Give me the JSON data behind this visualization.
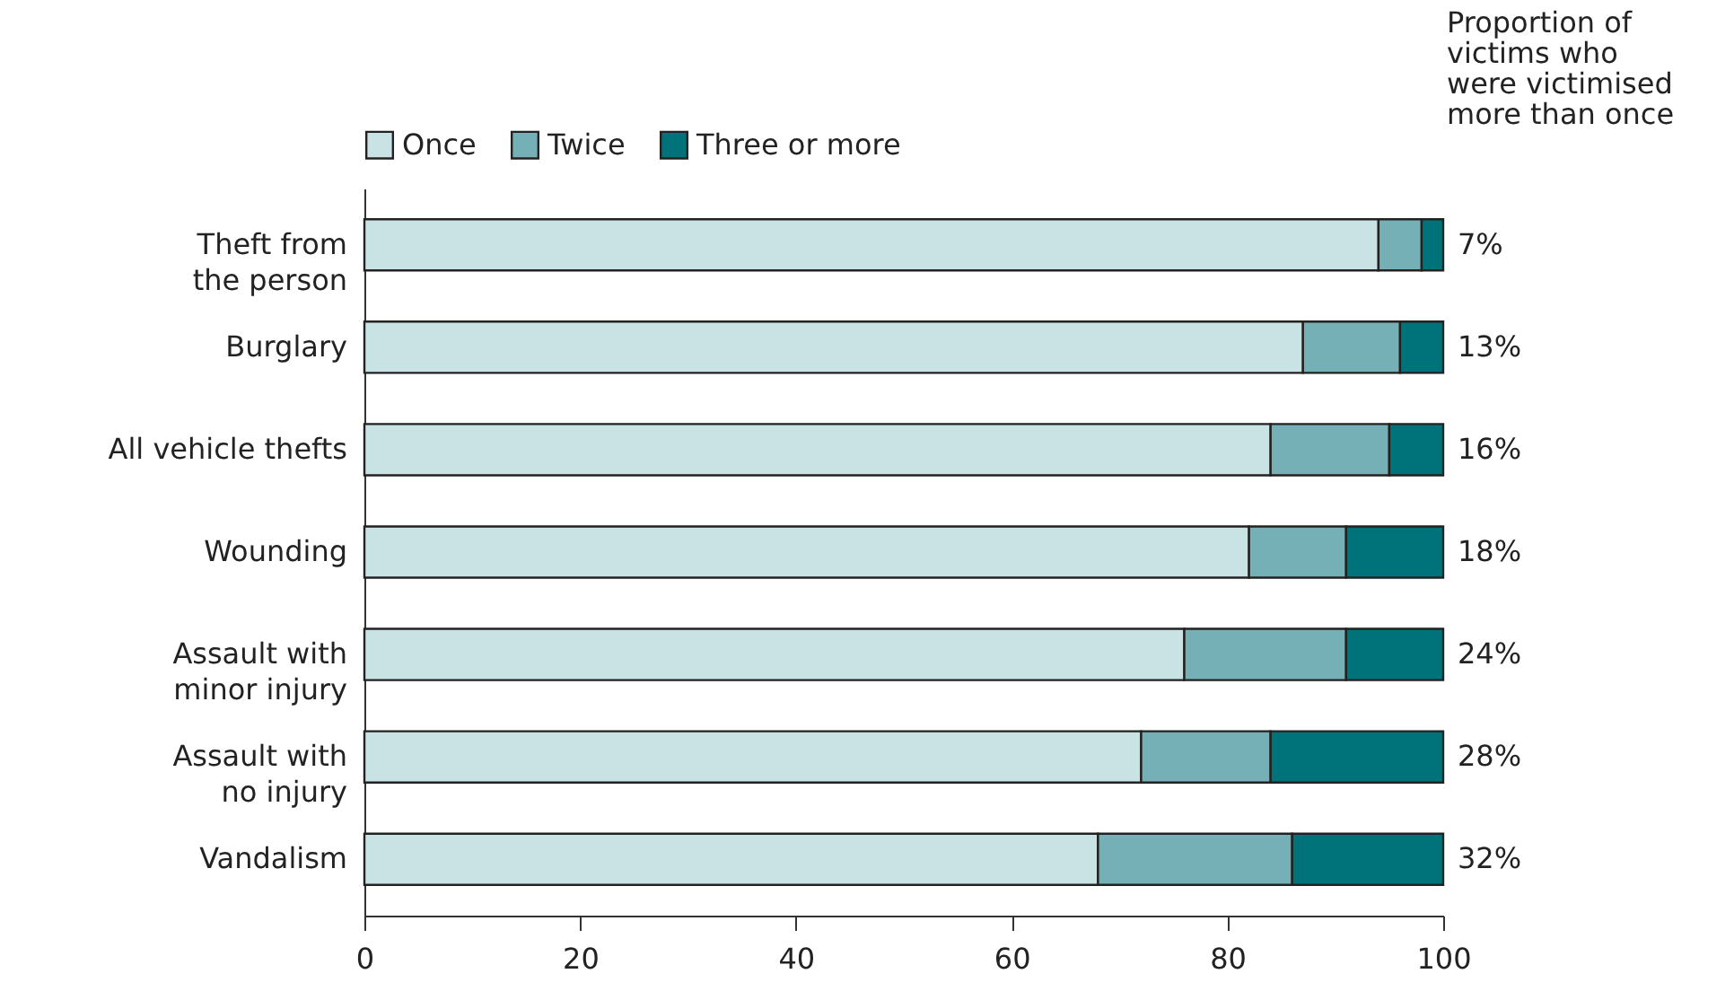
{
  "chart_data": {
    "type": "bar",
    "orientation": "horizontal",
    "stacked": true,
    "categories": [
      "Theft from the person",
      "Burglary",
      "All vehicle thefts",
      "Wounding",
      "Assault with minor injury",
      "Assault with no injury",
      "Vandalism"
    ],
    "series": [
      {
        "name": "Once",
        "color": "#c9e3e4",
        "values": [
          94,
          87,
          84,
          82,
          76,
          72,
          68
        ]
      },
      {
        "name": "Twice",
        "color": "#74b0b5",
        "values": [
          4,
          9,
          11,
          9,
          15,
          12,
          18
        ]
      },
      {
        "name": "Three or more",
        "color": "#00737a",
        "values": [
          2,
          4,
          5,
          9,
          9,
          16,
          14
        ]
      }
    ],
    "xlim": [
      0,
      100
    ],
    "xticks": [
      0,
      20,
      40,
      60,
      80,
      100
    ],
    "grid": false,
    "legend": "top",
    "annotations": [
      "Proportion of victims who were victimised more than once",
      "7%",
      "13%",
      "16%",
      "18%",
      "24%",
      "28%",
      "32%"
    ]
  }
}
